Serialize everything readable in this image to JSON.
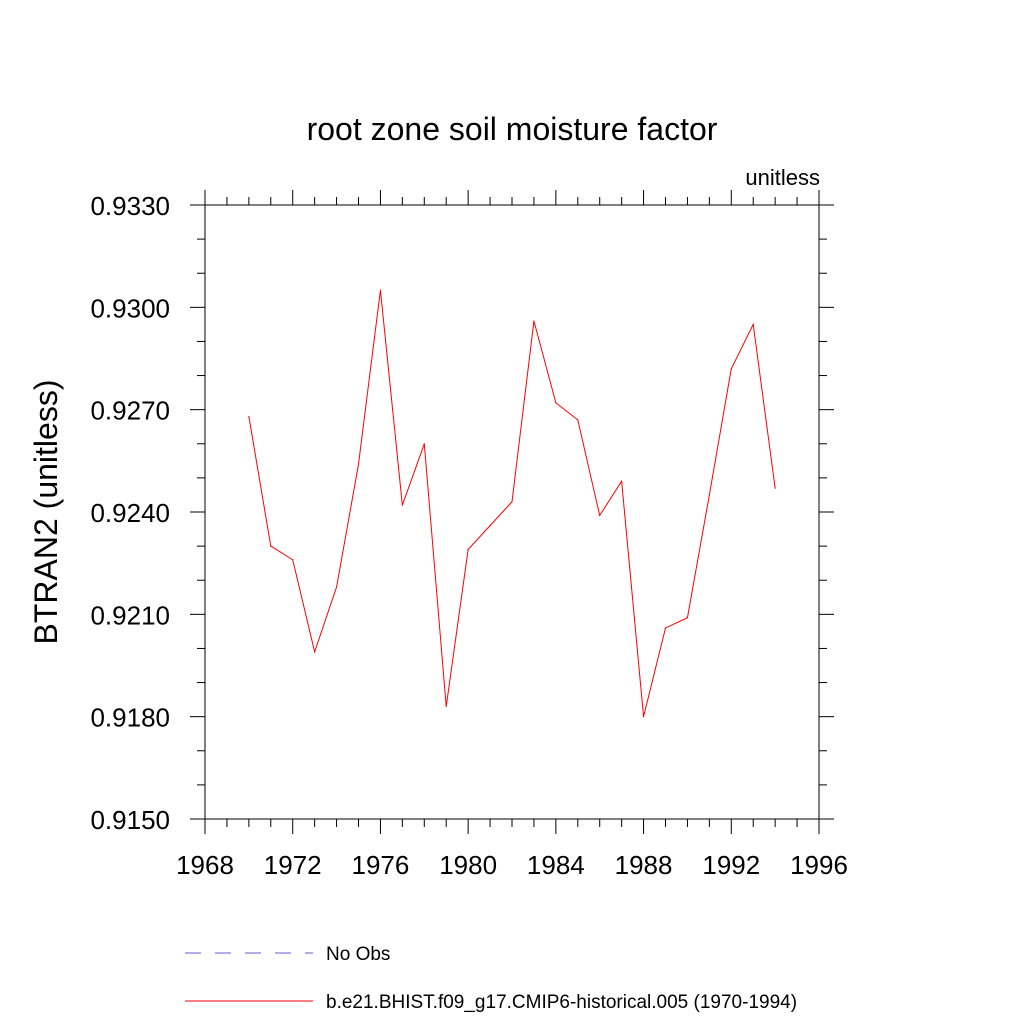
{
  "chart_data": {
    "type": "line",
    "title": "root zone soil moisture factor",
    "subtitle_right": "unitless",
    "ylabel": "BTRAN2  (unitless)",
    "xlabel": "",
    "xlim": [
      1968,
      1996
    ],
    "ylim": [
      0.915,
      0.933
    ],
    "x_ticks": [
      1968,
      1972,
      1976,
      1980,
      1984,
      1988,
      1992,
      1996
    ],
    "y_ticks": [
      0.915,
      0.918,
      0.921,
      0.924,
      0.927,
      0.93,
      0.933
    ],
    "y_tick_labels": [
      "0.9150",
      "0.9180",
      "0.9210",
      "0.9240",
      "0.9270",
      "0.9300",
      "0.9330"
    ],
    "x_minor_step": 1,
    "y_minor_step": 0.001,
    "grid": false,
    "legend_position": "bottom",
    "series": [
      {
        "name": "No Obs",
        "color": "#6a5acd",
        "dash": "dashed",
        "x": [],
        "values": []
      },
      {
        "name": "b.e21.BHIST.f09_g17.CMIP6-historical.005 (1970-1994)",
        "color": "#ff0000",
        "dash": "solid",
        "x": [
          1970,
          1971,
          1972,
          1973,
          1974,
          1975,
          1976,
          1977,
          1978,
          1979,
          1980,
          1981,
          1982,
          1983,
          1984,
          1985,
          1986,
          1987,
          1988,
          1989,
          1990,
          1991,
          1992,
          1993,
          1994
        ],
        "values": [
          0.9268,
          0.923,
          0.9226,
          0.9199,
          0.9218,
          0.9254,
          0.9305,
          0.9242,
          0.926,
          0.9183,
          0.9229,
          0.9236,
          0.9243,
          0.9296,
          0.9272,
          0.9267,
          0.9239,
          0.9249,
          0.918,
          0.9206,
          0.9209,
          0.9245,
          0.9282,
          0.9295,
          0.9247
        ]
      }
    ]
  }
}
